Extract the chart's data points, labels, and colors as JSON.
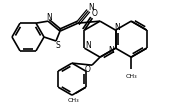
{
  "bg_color": "#ffffff",
  "line_color": "#000000",
  "lw": 1.2,
  "figsize": [
    1.75,
    1.09
  ],
  "dpi": 100,
  "xlim": [
    0,
    175
  ],
  "ylim": [
    0,
    109
  ]
}
